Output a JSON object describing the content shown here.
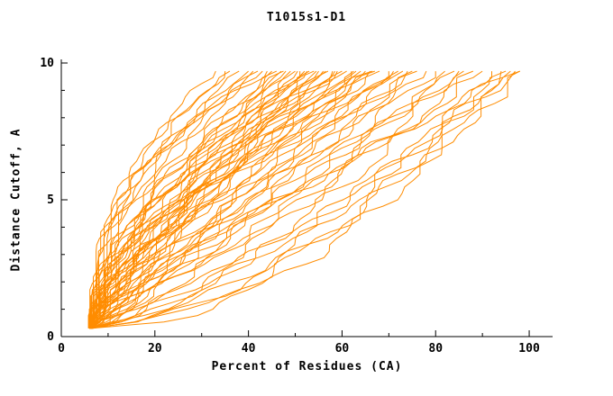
{
  "chart_data": {
    "type": "line",
    "title": "T1015s1-D1",
    "xlabel": "Percent of Residues (CA)",
    "ylabel": "Distance Cutoff, A",
    "xlim": [
      0,
      105
    ],
    "ylim": [
      0,
      10
    ],
    "x_ticks": [
      0,
      20,
      40,
      60,
      80,
      100
    ],
    "x_minor_ticks": [
      10,
      30,
      50,
      70,
      90
    ],
    "y_ticks": [
      0,
      5,
      10
    ],
    "y_minor_ticks": [
      1,
      2,
      3,
      4,
      6,
      7,
      8,
      9
    ],
    "grid": false,
    "legend": "none",
    "line_color": "#ff8c00",
    "axis_color": "#000000",
    "curve_y_range": [
      0.3,
      9.7
    ],
    "curves_format": "Each model curve = [x_at_bottom_cutoff, x_at_top_cutoff, shape_exponent]; curve runs monotonically from (x_start, 0.3 A) to (x_end, 9.7 A), x(t)=x_start+(x_end-x_start)*t^p with y(t)=0.3+9.4*t",
    "curves": [
      [
        6.0,
        33,
        2.2
      ],
      [
        6.5,
        35,
        2.0
      ],
      [
        5.8,
        36,
        2.4
      ],
      [
        6.0,
        38,
        1.8
      ],
      [
        6.2,
        40,
        2.1
      ],
      [
        6.8,
        41,
        1.7
      ],
      [
        6.0,
        42,
        2.3
      ],
      [
        6.4,
        43,
        1.9
      ],
      [
        6.0,
        44,
        2.5
      ],
      [
        6.6,
        45,
        1.6
      ],
      [
        6.0,
        46,
        1.5
      ],
      [
        6.3,
        47,
        1.2
      ],
      [
        6.7,
        48,
        1.8
      ],
      [
        6.0,
        49,
        1.0
      ],
      [
        6.5,
        50,
        1.6
      ],
      [
        6.0,
        51,
        1.3
      ],
      [
        6.2,
        52,
        1.9
      ],
      [
        6.8,
        53,
        1.1
      ],
      [
        6.0,
        54,
        1.7
      ],
      [
        6.4,
        55,
        1.4
      ],
      [
        6.0,
        56,
        1.2
      ],
      [
        6.6,
        57,
        1.8
      ],
      [
        6.2,
        58,
        1.0
      ],
      [
        6.0,
        59,
        1.5
      ],
      [
        6.5,
        60,
        1.3
      ],
      [
        6.1,
        47.5,
        1.45
      ],
      [
        6.3,
        50.5,
        1.05
      ],
      [
        6.0,
        52.5,
        1.55
      ],
      [
        6.5,
        54.5,
        0.98
      ],
      [
        6.2,
        56.5,
        1.35
      ],
      [
        6.0,
        58.5,
        1.65
      ],
      [
        6.4,
        62.5,
        1.25
      ],
      [
        6.1,
        66.5,
        1.45
      ],
      [
        6.0,
        61,
        1.4
      ],
      [
        6.3,
        62,
        1.1
      ],
      [
        6.0,
        63,
        1.6
      ],
      [
        6.6,
        64,
        0.9
      ],
      [
        6.2,
        65,
        1.3
      ],
      [
        6.0,
        66,
        1.0
      ],
      [
        6.4,
        67,
        1.5
      ],
      [
        6.0,
        68,
        1.2
      ],
      [
        6.7,
        70,
        0.95
      ],
      [
        6.0,
        71,
        1.4
      ],
      [
        6.3,
        72,
        1.05
      ],
      [
        6.0,
        73,
        1.3
      ],
      [
        6.5,
        74,
        0.9
      ],
      [
        6.0,
        75,
        1.15
      ],
      [
        6.0,
        76,
        1.0
      ],
      [
        6.4,
        78,
        0.85
      ],
      [
        6.0,
        80,
        1.1
      ],
      [
        6.2,
        82,
        0.8
      ],
      [
        6.0,
        84,
        0.95
      ],
      [
        6.5,
        85,
        0.75
      ],
      [
        6.0,
        86,
        1.05
      ],
      [
        6.3,
        88,
        0.7
      ],
      [
        6.0,
        90,
        0.9
      ],
      [
        6.0,
        92,
        0.6
      ],
      [
        6.5,
        94,
        0.55
      ],
      [
        6.0,
        95,
        0.7
      ],
      [
        6.2,
        96,
        0.5
      ],
      [
        6.0,
        97,
        0.75
      ],
      [
        6.4,
        98,
        0.6
      ],
      [
        7.0,
        98,
        1.2
      ]
    ]
  }
}
